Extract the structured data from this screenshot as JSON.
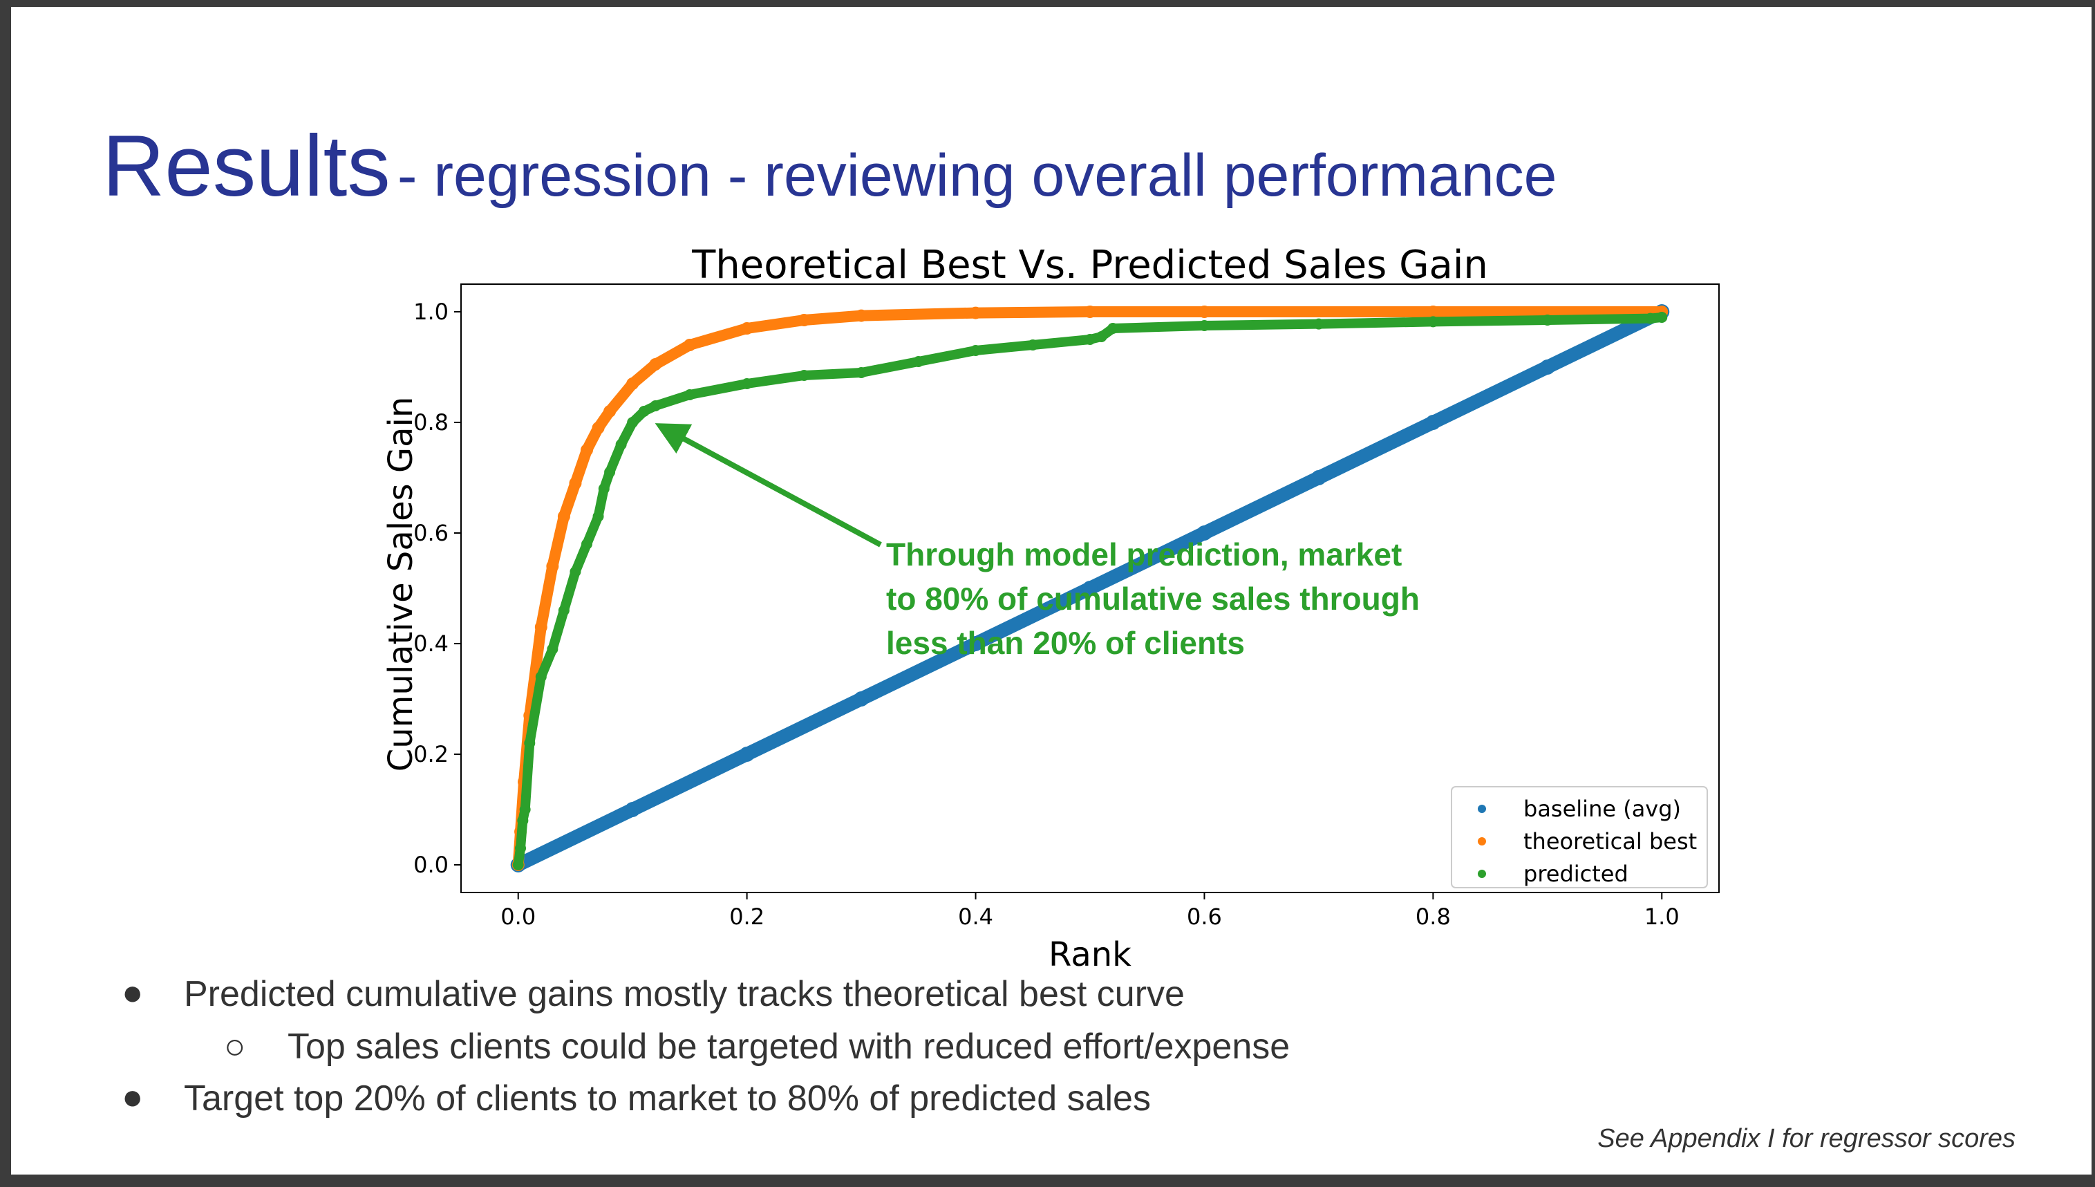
{
  "slide": {
    "title_main": "Results",
    "title_sub": "- regression - reviewing overall performance",
    "bullets": [
      {
        "level": 1,
        "text": "Predicted cumulative gains mostly tracks theoretical best curve"
      },
      {
        "level": 2,
        "text": "Top sales clients could be targeted with reduced effort/expense"
      },
      {
        "level": 1,
        "text": "Target top 20% of clients to market to 80% of predicted sales"
      }
    ],
    "footnote": "See Appendix I for regressor scores"
  },
  "chart_data": {
    "type": "scatter",
    "title": "Theoretical Best Vs. Predicted Sales Gain",
    "xlabel": "Rank",
    "ylabel": "Cumulative Sales Gain",
    "xlim": [
      -0.05,
      1.05
    ],
    "ylim": [
      -0.05,
      1.05
    ],
    "xticks": [
      "0.0",
      "0.2",
      "0.4",
      "0.6",
      "0.8",
      "1.0"
    ],
    "yticks": [
      "0.0",
      "0.2",
      "0.4",
      "0.6",
      "0.8",
      "1.0"
    ],
    "grid": false,
    "legend_position": "lower-right",
    "series": [
      {
        "name": "baseline (avg)",
        "color": "#1f77b4",
        "x": [
          0.0,
          0.1,
          0.2,
          0.3,
          0.4,
          0.5,
          0.6,
          0.7,
          0.8,
          0.9,
          1.0
        ],
        "y": [
          0.0,
          0.1,
          0.2,
          0.3,
          0.4,
          0.5,
          0.6,
          0.7,
          0.8,
          0.9,
          1.0
        ]
      },
      {
        "name": "theoretical best",
        "color": "#ff7f0e",
        "x": [
          0.0,
          0.002,
          0.005,
          0.01,
          0.02,
          0.03,
          0.04,
          0.05,
          0.06,
          0.07,
          0.08,
          0.1,
          0.12,
          0.15,
          0.2,
          0.25,
          0.3,
          0.4,
          0.5,
          0.6,
          0.8,
          1.0
        ],
        "y": [
          0.0,
          0.06,
          0.15,
          0.27,
          0.43,
          0.54,
          0.63,
          0.69,
          0.75,
          0.79,
          0.82,
          0.87,
          0.905,
          0.94,
          0.97,
          0.985,
          0.993,
          0.998,
          1.0,
          1.0,
          1.0,
          1.0
        ]
      },
      {
        "name": "predicted",
        "color": "#2ca02c",
        "x": [
          0.0,
          0.002,
          0.004,
          0.006,
          0.01,
          0.02,
          0.03,
          0.04,
          0.05,
          0.06,
          0.07,
          0.075,
          0.08,
          0.09,
          0.1,
          0.11,
          0.12,
          0.15,
          0.2,
          0.25,
          0.3,
          0.35,
          0.4,
          0.45,
          0.5,
          0.51,
          0.52,
          0.6,
          0.7,
          0.8,
          0.9,
          0.99,
          1.0
        ],
        "y": [
          0.0,
          0.03,
          0.08,
          0.1,
          0.22,
          0.34,
          0.39,
          0.46,
          0.53,
          0.58,
          0.63,
          0.68,
          0.71,
          0.76,
          0.8,
          0.82,
          0.83,
          0.85,
          0.87,
          0.885,
          0.89,
          0.91,
          0.93,
          0.94,
          0.95,
          0.955,
          0.97,
          0.975,
          0.978,
          0.982,
          0.985,
          0.988,
          0.99
        ]
      }
    ],
    "annotation": {
      "lines": [
        "Through model prediction, market",
        "to 80% of cumulative sales through",
        "less than 20% of clients"
      ],
      "color": "#2ca02c",
      "arrow_target": [
        0.12,
        0.8
      ]
    }
  }
}
